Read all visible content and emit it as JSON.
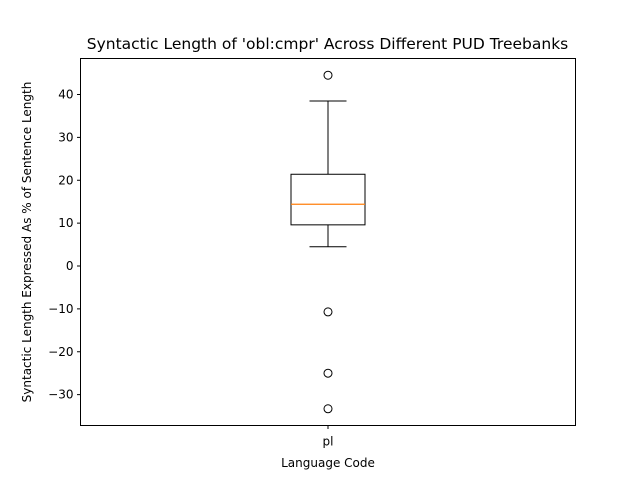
{
  "chart_data": {
    "type": "box",
    "title": "Syntactic Length of 'obl:cmpr' Across Different PUD Treebanks",
    "xlabel": "Language Code",
    "ylabel": "Syntactic Length Expressed As % of Sentence Length",
    "categories": [
      "pl"
    ],
    "boxes": [
      {
        "category": "pl",
        "whisker_low": 4.5,
        "q1": 9.6,
        "median": 14.4,
        "q3": 21.4,
        "whisker_high": 38.5,
        "outliers": [
          44.5,
          -10.7,
          -25.0,
          -33.3
        ]
      }
    ],
    "ylim": [
      -37.2,
      48.4
    ],
    "yticks": [
      -30,
      -20,
      -10,
      0,
      10,
      20,
      30,
      40
    ],
    "grid": false,
    "colors": {
      "box": "#000000",
      "median": "#ff7f0e",
      "outlier": "#000000"
    }
  }
}
